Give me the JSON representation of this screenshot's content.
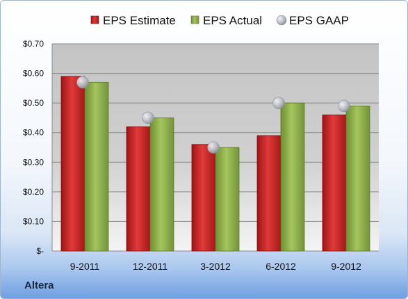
{
  "company": "Altera",
  "colors": {
    "estimate": "#cc2222",
    "actual": "#8fb04a",
    "gaap": "#b8bcc4"
  },
  "chart_data": {
    "type": "bar",
    "categories": [
      "9-2011",
      "12-2011",
      "3-2012",
      "6-2012",
      "9-2012"
    ],
    "series": [
      {
        "name": "EPS Estimate",
        "values": [
          0.59,
          0.42,
          0.36,
          0.39,
          0.46
        ]
      },
      {
        "name": "EPS Actual",
        "values": [
          0.57,
          0.45,
          0.35,
          0.5,
          0.49
        ]
      },
      {
        "name": "EPS GAAP",
        "values": [
          0.57,
          0.45,
          0.35,
          0.5,
          0.49
        ]
      }
    ],
    "ylim": [
      0,
      0.7
    ],
    "yticks": [
      0,
      0.1,
      0.2,
      0.3,
      0.4,
      0.5,
      0.6,
      0.7
    ],
    "ytick_labels": [
      "$-",
      "$0.10",
      "$0.20",
      "$0.30",
      "$0.40",
      "$0.50",
      "$0.60",
      "$0.70"
    ],
    "grid": true,
    "legend": "top"
  }
}
